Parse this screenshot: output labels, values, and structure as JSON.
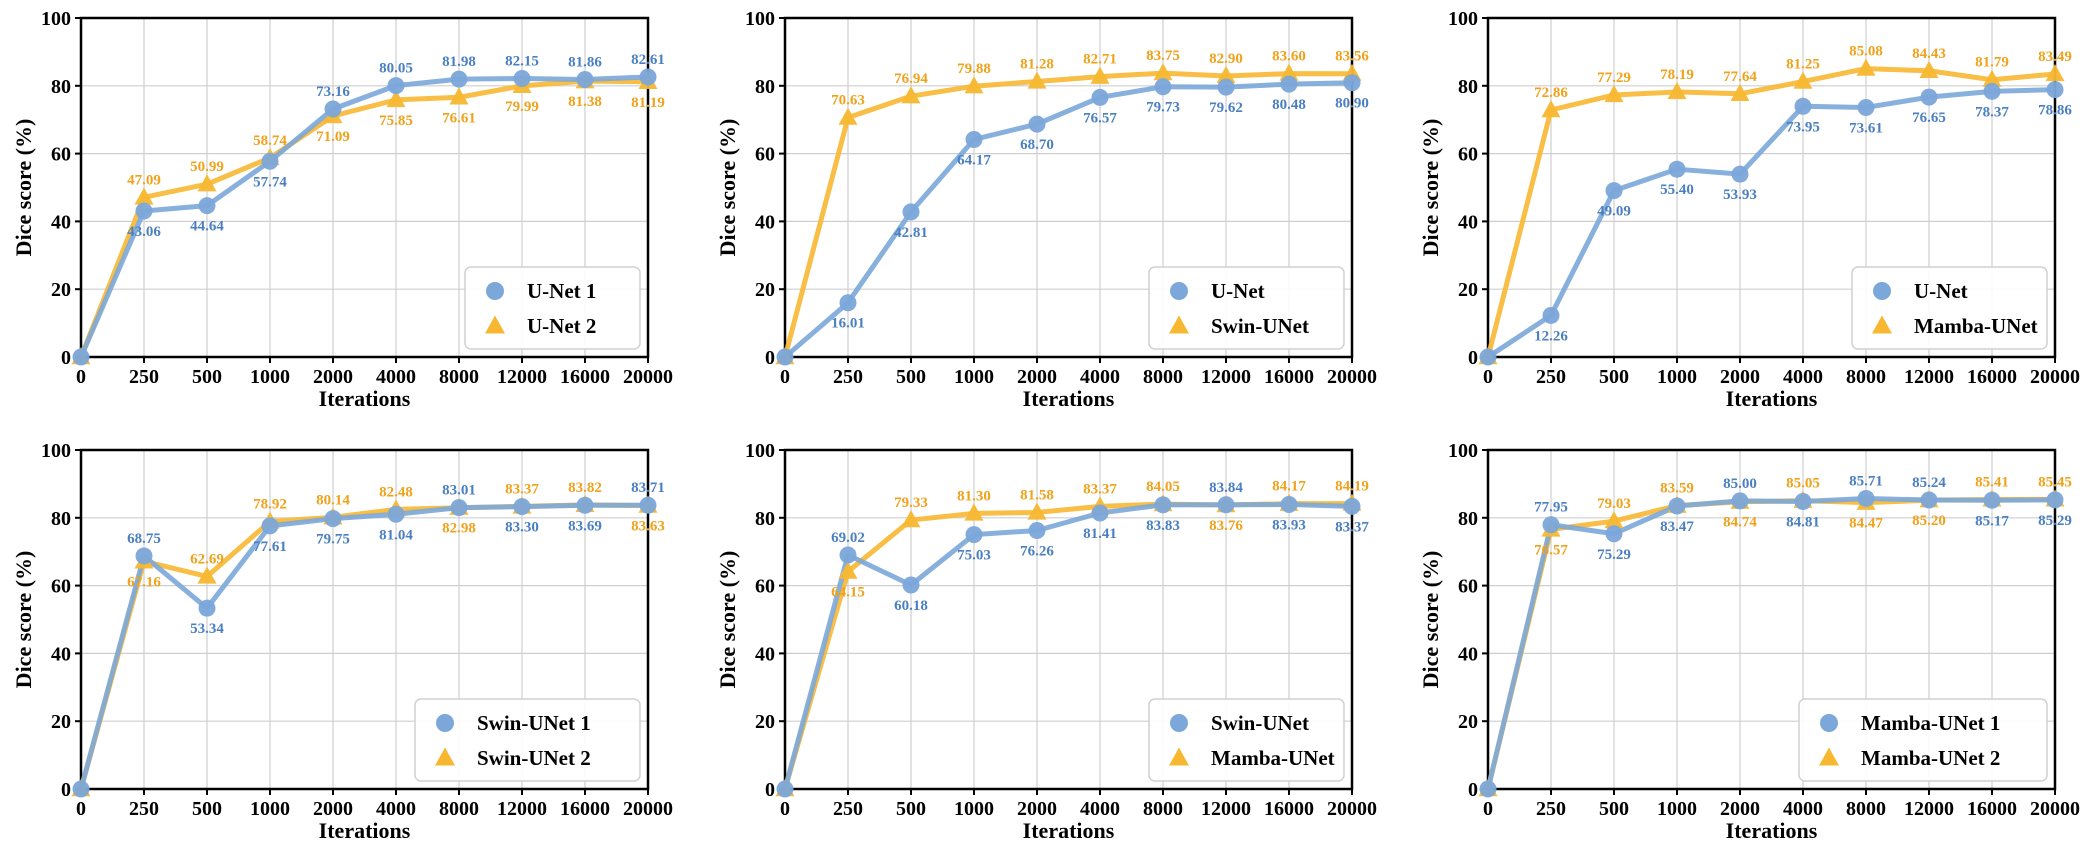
{
  "colors": {
    "series1": "#7ba7d9",
    "series2": "#f7b731",
    "label1": "#4a7fc1",
    "label2": "#f0a21a",
    "grid": "#cfcfcf"
  },
  "chart_data": [
    {
      "type": "line",
      "x": [
        "0",
        "250",
        "500",
        "1000",
        "2000",
        "4000",
        "8000",
        "12000",
        "16000",
        "20000"
      ],
      "xlabel": "Iterations",
      "ylabel": "Dice score (%)",
      "ylim": [
        0,
        100
      ],
      "yticks": [
        "0",
        "20",
        "40",
        "60",
        "80",
        "100"
      ],
      "grid": true,
      "legend": "bottom-right",
      "series": [
        {
          "name": "U-Net 1",
          "marker": "circle",
          "values": [
            0,
            43.06,
            44.64,
            57.74,
            73.16,
            80.05,
            81.98,
            82.15,
            81.86,
            82.61
          ],
          "labels": [
            "",
            "43.06",
            "44.64",
            "57.74",
            "73.16",
            "80.05",
            "81.98",
            "82.15",
            "81.86",
            "82.61"
          ]
        },
        {
          "name": "U-Net 2",
          "marker": "triangle",
          "values": [
            0,
            47.09,
            50.99,
            58.74,
            71.09,
            75.85,
            76.61,
            79.99,
            81.38,
            81.19
          ],
          "labels": [
            "",
            "47.09",
            "50.99",
            "58.74",
            "71.09",
            "75.85",
            "76.61",
            "79.99",
            "81.38",
            "81.19"
          ]
        }
      ]
    },
    {
      "type": "line",
      "x": [
        "0",
        "250",
        "500",
        "1000",
        "2000",
        "4000",
        "8000",
        "12000",
        "16000",
        "20000"
      ],
      "xlabel": "Iterations",
      "ylabel": "Dice score (%)",
      "ylim": [
        0,
        100
      ],
      "yticks": [
        "0",
        "20",
        "40",
        "60",
        "80",
        "100"
      ],
      "grid": true,
      "legend": "bottom-right",
      "series": [
        {
          "name": "U-Net",
          "marker": "circle",
          "values": [
            0,
            16.01,
            42.81,
            64.17,
            68.7,
            76.57,
            79.73,
            79.62,
            80.48,
            80.9
          ],
          "labels": [
            "",
            "16.01",
            "42.81",
            "64.17",
            "68.70",
            "76.57",
            "79.73",
            "79.62",
            "80.48",
            "80.90"
          ]
        },
        {
          "name": "Swin-UNet",
          "marker": "triangle",
          "values": [
            0,
            70.63,
            76.94,
            79.88,
            81.28,
            82.71,
            83.75,
            82.9,
            83.6,
            83.56
          ],
          "labels": [
            "",
            "70.63",
            "76.94",
            "79.88",
            "81.28",
            "82.71",
            "83.75",
            "82.90",
            "83.60",
            "83.56"
          ]
        }
      ]
    },
    {
      "type": "line",
      "x": [
        "0",
        "250",
        "500",
        "1000",
        "2000",
        "4000",
        "8000",
        "12000",
        "16000",
        "20000"
      ],
      "xlabel": "Iterations",
      "ylabel": "Dice score (%)",
      "ylim": [
        0,
        100
      ],
      "yticks": [
        "0",
        "20",
        "40",
        "60",
        "80",
        "100"
      ],
      "grid": true,
      "legend": "bottom-right",
      "series": [
        {
          "name": "U-Net",
          "marker": "circle",
          "values": [
            0,
            12.26,
            49.09,
            55.4,
            53.93,
            73.95,
            73.61,
            76.65,
            78.37,
            78.86
          ],
          "labels": [
            "",
            "12.26",
            "49.09",
            "55.40",
            "53.93",
            "73.95",
            "73.61",
            "76.65",
            "78.37",
            "78.86"
          ]
        },
        {
          "name": "Mamba-UNet",
          "marker": "triangle",
          "values": [
            0,
            72.86,
            77.29,
            78.19,
            77.64,
            81.25,
            85.08,
            84.43,
            81.79,
            83.49
          ],
          "labels": [
            "",
            "72.86",
            "77.29",
            "78.19",
            "77.64",
            "81.25",
            "85.08",
            "84.43",
            "81.79",
            "83.49"
          ]
        }
      ]
    },
    {
      "type": "line",
      "x": [
        "0",
        "250",
        "500",
        "1000",
        "2000",
        "4000",
        "8000",
        "12000",
        "16000",
        "20000"
      ],
      "xlabel": "Iterations",
      "ylabel": "Dice score (%)",
      "ylim": [
        0,
        100
      ],
      "yticks": [
        "0",
        "20",
        "40",
        "60",
        "80",
        "100"
      ],
      "grid": true,
      "legend": "bottom-right",
      "series": [
        {
          "name": "Swin-UNet 1",
          "marker": "circle",
          "values": [
            0,
            68.75,
            53.34,
            77.61,
            79.75,
            81.04,
            83.01,
            83.3,
            83.69,
            83.71
          ],
          "labels": [
            "",
            "68.75",
            "53.34",
            "77.61",
            "79.75",
            "81.04",
            "83.01",
            "83.30",
            "83.69",
            "83.71"
          ]
        },
        {
          "name": "Swin-UNet 2",
          "marker": "triangle",
          "values": [
            0,
            67.16,
            62.69,
            78.92,
            80.14,
            82.48,
            82.98,
            83.37,
            83.82,
            83.63
          ],
          "labels": [
            "",
            "67.16",
            "62.69",
            "78.92",
            "80.14",
            "82.48",
            "82.98",
            "83.37",
            "83.82",
            "83.63"
          ]
        }
      ]
    },
    {
      "type": "line",
      "x": [
        "0",
        "250",
        "500",
        "1000",
        "2000",
        "4000",
        "8000",
        "12000",
        "16000",
        "20000"
      ],
      "xlabel": "Iterations",
      "ylabel": "Dice score (%)",
      "ylim": [
        0,
        100
      ],
      "yticks": [
        "0",
        "20",
        "40",
        "60",
        "80",
        "100"
      ],
      "grid": true,
      "legend": "bottom-right",
      "series": [
        {
          "name": "Swin-UNet",
          "marker": "circle",
          "values": [
            0,
            69.02,
            60.18,
            75.03,
            76.26,
            81.41,
            83.83,
            83.84,
            83.93,
            83.37
          ],
          "labels": [
            "",
            "69.02",
            "60.18",
            "75.03",
            "76.26",
            "81.41",
            "83.83",
            "83.84",
            "83.93",
            "83.37"
          ]
        },
        {
          "name": "Mamba-UNet",
          "marker": "triangle",
          "values": [
            0,
            64.15,
            79.33,
            81.3,
            81.58,
            83.37,
            84.05,
            83.76,
            84.17,
            84.19
          ],
          "labels": [
            "",
            "64.15",
            "79.33",
            "81.30",
            "81.58",
            "83.37",
            "84.05",
            "83.76",
            "84.17",
            "84.19"
          ]
        }
      ]
    },
    {
      "type": "line",
      "x": [
        "0",
        "250",
        "500",
        "1000",
        "2000",
        "4000",
        "8000",
        "12000",
        "16000",
        "20000"
      ],
      "xlabel": "Iterations",
      "ylabel": "Dice score (%)",
      "ylim": [
        0,
        100
      ],
      "yticks": [
        "0",
        "20",
        "40",
        "60",
        "80",
        "100"
      ],
      "grid": true,
      "legend": "bottom-right",
      "series": [
        {
          "name": "Mamba-UNet 1",
          "marker": "circle",
          "values": [
            0,
            77.95,
            75.29,
            83.47,
            85.0,
            84.81,
            85.71,
            85.24,
            85.17,
            85.29
          ],
          "labels": [
            "",
            "77.95",
            "75.29",
            "83.47",
            "85.00",
            "84.81",
            "85.71",
            "85.24",
            "85.17",
            "85.29"
          ]
        },
        {
          "name": "Mamba-UNet 2",
          "marker": "triangle",
          "values": [
            0,
            76.57,
            79.03,
            83.59,
            84.74,
            85.05,
            84.47,
            85.2,
            85.41,
            85.45
          ],
          "labels": [
            "",
            "76.57",
            "79.03",
            "83.59",
            "84.74",
            "85.05",
            "84.47",
            "85.20",
            "85.41",
            "85.45"
          ]
        }
      ]
    }
  ]
}
